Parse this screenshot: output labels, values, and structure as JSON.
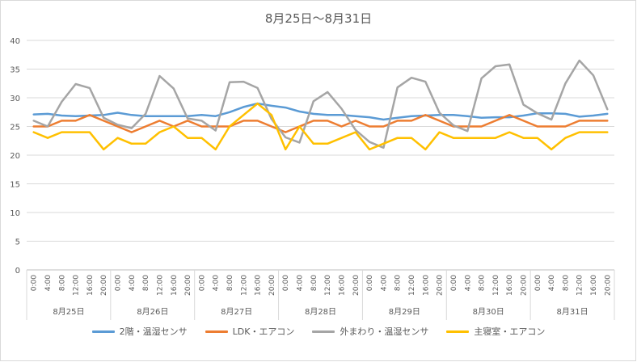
{
  "chart_data": {
    "type": "line",
    "title": "8月25日～8月31日",
    "xlabel": "",
    "ylabel": "",
    "ylim": [
      0,
      40
    ],
    "y_ticks": [
      "0",
      "5",
      "10",
      "15",
      "20",
      "25",
      "30",
      "35",
      "40"
    ],
    "grid": true,
    "legend_position": "bottom",
    "time_labels": [
      "0:00",
      "4:00",
      "8:00",
      "12:00",
      "16:00",
      "20:00"
    ],
    "days": [
      "8月25日",
      "8月26日",
      "8月27日",
      "8月28日",
      "8月29日",
      "8月30日",
      "8月31日"
    ],
    "series": [
      {
        "name": "2階・温湿センサ",
        "color": "#5b9bd5",
        "values": [
          27.1,
          27.2,
          26.9,
          26.8,
          26.9,
          27.0,
          27.4,
          27.0,
          26.8,
          26.8,
          26.8,
          26.8,
          27.0,
          26.8,
          27.5,
          28.4,
          29.0,
          28.6,
          28.3,
          27.6,
          27.2,
          27.0,
          27.0,
          26.8,
          26.6,
          26.2,
          26.5,
          26.8,
          26.9,
          27.0,
          27.0,
          26.8,
          26.5,
          26.6,
          26.6,
          26.9,
          27.3,
          27.3,
          27.2,
          26.7,
          26.9,
          27.2
        ]
      },
      {
        "name": "LDK・エアコン",
        "color": "#ed7d31",
        "values": [
          25,
          25,
          26,
          26,
          27,
          26,
          25,
          24,
          25,
          26,
          25,
          26,
          25,
          25,
          25,
          26,
          26,
          25,
          24,
          25,
          26,
          26,
          25,
          26,
          25,
          25,
          26,
          26,
          27,
          26,
          25,
          25,
          25,
          26,
          27,
          26,
          25,
          25,
          25,
          26,
          26,
          26
        ]
      },
      {
        "name": "外まわり・温湿センサ",
        "color": "#a5a5a5",
        "values": [
          26.0,
          25.0,
          29.3,
          32.4,
          31.7,
          26.5,
          25.3,
          24.7,
          27.2,
          33.8,
          31.6,
          26.4,
          26.0,
          24.3,
          32.7,
          32.8,
          31.7,
          26.3,
          23.1,
          22.2,
          29.4,
          31.0,
          28.1,
          24.4,
          22.3,
          21.3,
          31.8,
          33.5,
          32.8,
          27.4,
          25.2,
          24.2,
          33.4,
          35.5,
          35.8,
          28.8,
          27.3,
          26.2,
          32.5,
          36.5,
          33.9,
          28.0
        ]
      },
      {
        "name": "主寝室・エアコン",
        "color": "#ffc000",
        "values": [
          24,
          23,
          24,
          24,
          24,
          21,
          23,
          22,
          22,
          24,
          25,
          23,
          23,
          21,
          25,
          27,
          29,
          27,
          21,
          25,
          22,
          22,
          23,
          24,
          21,
          22,
          23,
          23,
          21,
          24,
          23,
          23,
          23,
          23,
          24,
          23,
          23,
          21,
          23,
          24,
          24,
          24
        ]
      }
    ]
  }
}
